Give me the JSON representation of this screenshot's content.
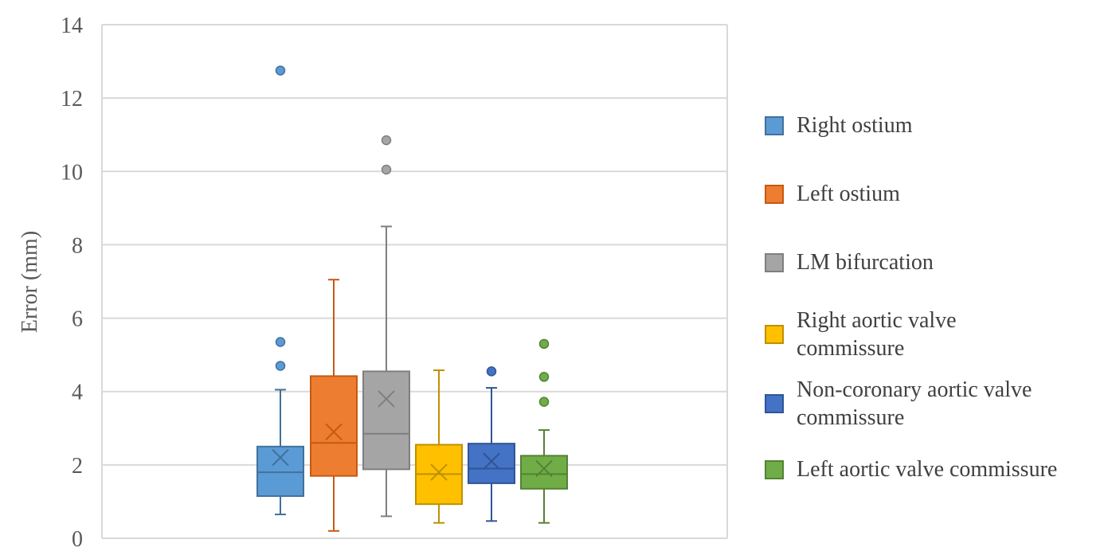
{
  "chart_data": {
    "type": "box",
    "ylabel": "Error (mm)",
    "ylim": [
      0,
      14
    ],
    "yticks": [
      "0",
      "2",
      "4",
      "6",
      "8",
      "10",
      "12",
      "14"
    ],
    "grid": true,
    "legend_position": "right",
    "series": [
      {
        "name": "Right ostium",
        "fill": "#5B9BD5",
        "stroke": "#41719C",
        "whisker_low": 0.65,
        "q1": 1.15,
        "median": 1.8,
        "q3": 2.5,
        "whisker_high": 4.05,
        "mean": 2.2,
        "outliers": [
          4.7,
          5.35,
          12.75
        ]
      },
      {
        "name": "Left ostium",
        "fill": "#ED7D31",
        "stroke": "#C55A11",
        "whisker_low": 0.2,
        "q1": 1.7,
        "median": 2.6,
        "q3": 4.42,
        "whisker_high": 7.05,
        "mean": 2.9,
        "outliers": []
      },
      {
        "name": "LM bifurcation",
        "fill": "#A5A5A5",
        "stroke": "#7F7F7F",
        "whisker_low": 0.6,
        "q1": 1.88,
        "median": 2.85,
        "q3": 4.55,
        "whisker_high": 8.5,
        "mean": 3.8,
        "outliers": [
          10.05,
          10.85
        ]
      },
      {
        "name": "Right aortic valve commissure",
        "fill": "#FFC000",
        "stroke": "#BF9000",
        "whisker_low": 0.42,
        "q1": 0.93,
        "median": 1.75,
        "q3": 2.55,
        "whisker_high": 4.58,
        "mean": 1.8,
        "outliers": []
      },
      {
        "name": "Non-coronary aortic valve commissure",
        "fill": "#4472C4",
        "stroke": "#2F5597",
        "whisker_low": 0.47,
        "q1": 1.5,
        "median": 1.9,
        "q3": 2.58,
        "whisker_high": 4.1,
        "mean": 2.1,
        "outliers": [
          4.55
        ]
      },
      {
        "name": "Left aortic valve commissure",
        "fill": "#70AD47",
        "stroke": "#548235",
        "whisker_low": 0.42,
        "q1": 1.35,
        "median": 1.75,
        "q3": 2.25,
        "whisker_high": 2.95,
        "mean": 1.9,
        "outliers": [
          3.72,
          4.4,
          5.3
        ]
      }
    ],
    "legend_lines": [
      [
        "Right ostium"
      ],
      [
        "Left ostium"
      ],
      [
        "LM bifurcation"
      ],
      [
        "Right aortic valve",
        "commissure"
      ],
      [
        "Non-coronary aortic valve",
        "commissure"
      ],
      [
        "Left aortic valve commissure"
      ]
    ]
  }
}
